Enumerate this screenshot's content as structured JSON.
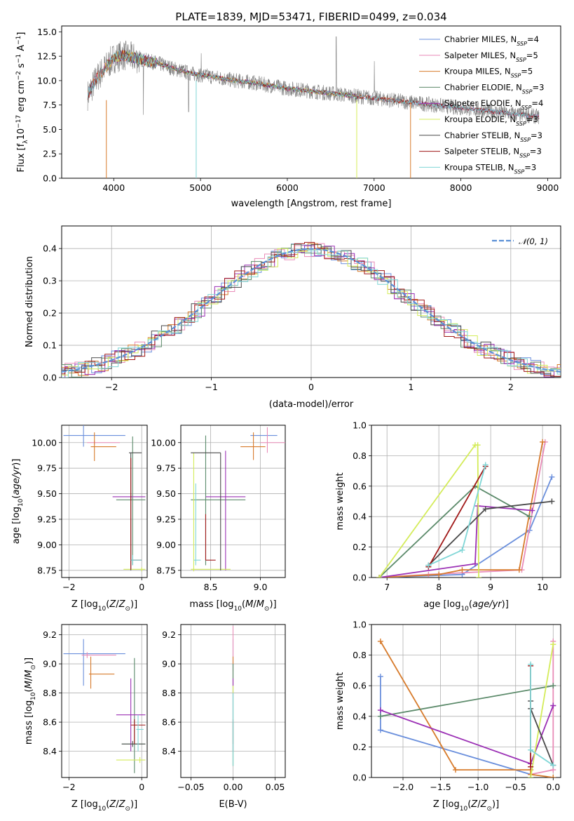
{
  "colors": {
    "chabrier_miles": "#6a8fdc",
    "salpeter_miles": "#e98cb8",
    "kroupa_miles": "#d77b2c",
    "chabrier_elodie": "#5b8a6a",
    "salpeter_elodie": "#9b30b5",
    "kroupa_elodie": "#d4ec5a",
    "chabrier_stelib": "#4a4a4a",
    "salpeter_stelib": "#a01818",
    "kroupa_stelib": "#7fd6d6",
    "data_gray": "#808080",
    "normal": "#5a8fd6"
  },
  "chart_data": [
    {
      "id": "spectrum",
      "type": "line",
      "title": "PLATE=1839, MJD=53471, FIBERID=0499, z=0.034",
      "xlabel": "wavelength [Angstrom, rest frame]",
      "ylabel": "Flux [f_λ10^-17 erg cm^-2 s^-1 A^-1]",
      "xlim": [
        3400,
        9150
      ],
      "ylim": [
        0,
        15.6
      ],
      "xticks": [
        "4000",
        "5000",
        "6000",
        "7000",
        "8000",
        "9000"
      ],
      "yticks": [
        "0.0",
        "2.5",
        "5.0",
        "7.5",
        "10.0",
        "12.5",
        "15.0"
      ],
      "legend_position": "top-right",
      "legend": [
        {
          "model": "Chabrier MILES",
          "nssp": "4",
          "color": "chabrier_miles"
        },
        {
          "model": "Salpeter MILES",
          "nssp": "5",
          "color": "salpeter_miles"
        },
        {
          "model": "Kroupa MILES",
          "nssp": "5",
          "color": "kroupa_miles"
        },
        {
          "model": "Chabrier ELODIE",
          "nssp": "3",
          "color": "chabrier_elodie"
        },
        {
          "model": "Salpeter ELODIE",
          "nssp": "4",
          "color": "salpeter_elodie"
        },
        {
          "model": "Kroupa ELODIE",
          "nssp": "3",
          "color": "kroupa_elodie"
        },
        {
          "model": "Chabrier STELIB",
          "nssp": "3",
          "color": "chabrier_stelib"
        },
        {
          "model": "Salpeter STELIB",
          "nssp": "3",
          "color": "salpeter_stelib"
        },
        {
          "model": "Kroupa STELIB",
          "nssp": "3",
          "color": "kroupa_stelib"
        }
      ],
      "continuum": {
        "x": [
          3700,
          3800,
          3900,
          4000,
          4100,
          4200,
          4300,
          4400,
          4500,
          4700,
          4900,
          5000,
          5200,
          5400,
          5600,
          5800,
          6000,
          6200,
          6400,
          6600,
          6800,
          7000,
          7200,
          7400
        ],
        "y": [
          8.5,
          10.2,
          11.3,
          12.3,
          12.6,
          12.4,
          12.2,
          12.0,
          11.8,
          11.2,
          10.7,
          10.6,
          10.3,
          10.0,
          9.8,
          9.5,
          9.2,
          9.0,
          8.8,
          8.6,
          8.4,
          8.2,
          8.0,
          7.8
        ]
      },
      "model_ranges": {
        "chabrier_miles": [
          3700,
          8900
        ],
        "salpeter_miles": [
          3700,
          8900
        ],
        "kroupa_miles": [
          3700,
          7420
        ],
        "chabrier_elodie": [
          4000,
          6800
        ],
        "salpeter_elodie": [
          4000,
          6800
        ],
        "kroupa_elodie": [
          3900,
          6800
        ],
        "chabrier_stelib": [
          3700,
          8900
        ],
        "salpeter_stelib": [
          3700,
          8900
        ],
        "kroupa_stelib": [
          3700,
          8900
        ]
      }
    },
    {
      "id": "residuals",
      "type": "step",
      "xlabel": "(data-model)/error",
      "ylabel": "Normed distribution",
      "xlim": [
        -2.5,
        2.5
      ],
      "ylim": [
        0,
        0.47
      ],
      "xticks": [
        -2,
        -1,
        0,
        1,
        2
      ],
      "xtick_labels": [
        "−2",
        "−1",
        "0",
        "1",
        "2"
      ],
      "yticks": [
        "0.0",
        "0.1",
        "0.2",
        "0.3",
        "0.4"
      ],
      "legend_position": "top-right",
      "normal_label": "𝒩(0, 1)"
    },
    {
      "id": "age_vs_Z",
      "type": "errorbar",
      "xlabel": "Z [log10(Z/Z⊙)]",
      "ylabel": "age  [log10(age/yr)]",
      "xlim": [
        -2.2,
        0.15
      ],
      "ylim": [
        8.68,
        10.17
      ],
      "xticks": [
        -2,
        0
      ],
      "xtick_labels": [
        "−2",
        "0"
      ],
      "yticks": [
        8.75,
        9.0,
        9.25,
        9.5,
        9.75,
        10.0
      ],
      "ytick_labels": [
        "8.75",
        "9.00",
        "9.25",
        "9.50",
        "9.75",
        "10.00"
      ],
      "points": [
        {
          "color": "chabrier_miles",
          "x": -1.6,
          "xl": -2.15,
          "xh": -0.45,
          "y": 10.07,
          "yl": 9.96,
          "yh": 10.18
        },
        {
          "color": "salpeter_miles",
          "x": -1.3,
          "xl": -1.5,
          "xh": -0.6,
          "y": 10.0,
          "yl": 9.98,
          "yh": 10.02
        },
        {
          "color": "kroupa_miles",
          "x": -1.3,
          "xl": -1.4,
          "xh": -0.7,
          "y": 9.96,
          "yl": 9.82,
          "yh": 10.1
        },
        {
          "color": "chabrier_elodie",
          "x": -0.25,
          "xl": -0.7,
          "xh": 0.1,
          "y": 9.44,
          "yl": 8.8,
          "yh": 10.06
        },
        {
          "color": "salpeter_elodie",
          "x": -0.3,
          "xl": -0.8,
          "xh": 0.1,
          "y": 9.47,
          "yl": 9.44,
          "yh": 9.5
        },
        {
          "color": "kroupa_elodie",
          "x": 0.0,
          "xl": -0.5,
          "xh": 0.1,
          "y": 8.76,
          "yl": 8.74,
          "yh": 8.78
        },
        {
          "color": "chabrier_stelib",
          "x": -0.3,
          "xl": -0.35,
          "xh": 0.0,
          "y": 9.9,
          "yl": 8.75,
          "yh": 9.9
        },
        {
          "color": "salpeter_stelib",
          "x": -0.3,
          "xl": -0.3,
          "xh": 0.0,
          "y": 8.85,
          "yl": 8.76,
          "yh": 9.85
        },
        {
          "color": "kroupa_stelib",
          "x": -0.25,
          "xl": -0.3,
          "xh": 0.0,
          "y": 8.85,
          "yl": 8.8,
          "yh": 8.9
        }
      ]
    },
    {
      "id": "age_vs_mass",
      "type": "errorbar",
      "xlabel": "mass [log10(M/M⊙)]",
      "ylabel": "",
      "xlim": [
        8.2,
        9.25
      ],
      "ylim": [
        8.68,
        10.17
      ],
      "xticks": [
        8.5,
        9.0
      ],
      "xtick_labels": [
        "8.5",
        "9.0"
      ],
      "yticks": [
        8.75,
        9.0,
        9.25,
        9.5,
        9.75,
        10.0
      ],
      "ytick_labels": [
        "8.75",
        "9.00",
        "9.25",
        "9.50",
        "9.75",
        "10.00"
      ],
      "points": [
        {
          "color": "chabrier_miles",
          "x": 9.07,
          "xl": 8.9,
          "xh": 9.17,
          "y": 10.07,
          "yl": 10.07,
          "yh": 10.07
        },
        {
          "color": "salpeter_miles",
          "x": 9.07,
          "xl": 9.0,
          "xh": 9.25,
          "y": 10.0,
          "yl": 9.9,
          "yh": 10.15
        },
        {
          "color": "kroupa_miles",
          "x": 8.93,
          "xl": 8.8,
          "xh": 9.05,
          "y": 9.96,
          "yl": 9.83,
          "yh": 10.1
        },
        {
          "color": "chabrier_elodie",
          "x": 8.45,
          "xl": 8.3,
          "xh": 8.85,
          "y": 9.44,
          "yl": 8.8,
          "yh": 10.07
        },
        {
          "color": "salpeter_elodie",
          "x": 8.65,
          "xl": 8.45,
          "xh": 8.85,
          "y": 9.47,
          "yl": 8.75,
          "yh": 9.92
        },
        {
          "color": "kroupa_elodie",
          "x": 8.33,
          "xl": 8.3,
          "xh": 8.7,
          "y": 8.76,
          "yl": 8.74,
          "yh": 9.9
        },
        {
          "color": "chabrier_stelib",
          "x": 8.6,
          "xl": 8.3,
          "xh": 8.6,
          "y": 9.9,
          "yl": 8.75,
          "yh": 9.9
        },
        {
          "color": "salpeter_stelib",
          "x": 8.45,
          "xl": 8.45,
          "xh": 8.55,
          "y": 8.85,
          "yl": 8.85,
          "yh": 9.3
        },
        {
          "color": "kroupa_stelib",
          "x": 8.35,
          "xl": 8.33,
          "xh": 8.4,
          "y": 8.85,
          "yl": 8.8,
          "yh": 9.6
        }
      ]
    },
    {
      "id": "weight_vs_age",
      "type": "line",
      "xlabel": "age  [log10(age/yr)]",
      "ylabel": "mass weight",
      "xlim": [
        6.7,
        10.35
      ],
      "ylim": [
        0,
        1.0
      ],
      "xticks": [
        7,
        8,
        9,
        10
      ],
      "xtick_labels": [
        "7",
        "8",
        "9",
        "10"
      ],
      "yticks": [
        0.0,
        0.2,
        0.4,
        0.6,
        0.8,
        1.0
      ],
      "ytick_labels": [
        "0.0",
        "0.2",
        "0.4",
        "0.6",
        "0.8",
        "1.0"
      ],
      "series": [
        {
          "color": "chabrier_miles",
          "x": [
            6.85,
            8.45,
            9.75,
            10.18
          ],
          "y": [
            0.0,
            0.02,
            0.31,
            0.66
          ]
        },
        {
          "color": "salpeter_miles",
          "x": [
            6.85,
            7.8,
            9.6,
            10.05
          ],
          "y": [
            0.0,
            0.02,
            0.05,
            0.89
          ]
        },
        {
          "color": "kroupa_miles",
          "x": [
            6.85,
            8.0,
            8.45,
            9.55,
            10.0
          ],
          "y": [
            0.0,
            0.02,
            0.05,
            0.05,
            0.89
          ]
        },
        {
          "color": "chabrier_elodie",
          "x": [
            6.85,
            8.7,
            9.75
          ],
          "y": [
            0.0,
            0.6,
            0.4
          ]
        },
        {
          "color": "salpeter_elodie",
          "x": [
            6.85,
            8.7,
            8.75,
            9.8
          ],
          "y": [
            0.0,
            0.09,
            0.47,
            0.44
          ]
        },
        {
          "color": "kroupa_elodie",
          "x": [
            6.85,
            8.7,
            8.75,
            8.77
          ],
          "y": [
            0.0,
            0.87,
            0.87,
            0.0
          ]
        },
        {
          "color": "chabrier_stelib",
          "x": [
            7.8,
            8.9,
            10.18
          ],
          "y": [
            0.08,
            0.45,
            0.5
          ]
        },
        {
          "color": "salpeter_stelib",
          "x": [
            7.8,
            8.9
          ],
          "y": [
            0.07,
            0.73
          ]
        },
        {
          "color": "kroupa_stelib",
          "x": [
            7.8,
            8.45,
            8.9
          ],
          "y": [
            0.08,
            0.18,
            0.74
          ]
        }
      ]
    },
    {
      "id": "mass_vs_Z",
      "type": "errorbar",
      "xlabel": "Z [log10(Z/Z⊙)]",
      "ylabel": "mass [log10(M/M⊙)]",
      "xlim": [
        -2.2,
        0.15
      ],
      "ylim": [
        8.22,
        9.27
      ],
      "xticks": [
        -2,
        0
      ],
      "xtick_labels": [
        "−2",
        "0"
      ],
      "yticks": [
        8.4,
        8.6,
        8.8,
        9.0,
        9.2
      ],
      "ytick_labels": [
        "8.4",
        "8.6",
        "8.8",
        "9.0",
        "9.2"
      ],
      "points": [
        {
          "color": "chabrier_miles",
          "x": -1.6,
          "xl": -2.15,
          "xh": -0.45,
          "y": 9.07,
          "yl": 8.85,
          "yh": 9.17
        },
        {
          "color": "salpeter_miles",
          "x": -1.5,
          "xl": -1.65,
          "xh": -0.7,
          "y": 9.06,
          "yl": 9.04,
          "yh": 9.08
        },
        {
          "color": "kroupa_miles",
          "x": -1.4,
          "xl": -1.45,
          "xh": -0.75,
          "y": 8.93,
          "yl": 8.83,
          "yh": 9.05
        },
        {
          "color": "chabrier_elodie",
          "x": -0.2,
          "xl": -0.55,
          "xh": 0.1,
          "y": 8.45,
          "yl": 8.25,
          "yh": 9.04
        },
        {
          "color": "salpeter_elodie",
          "x": -0.3,
          "xl": -0.7,
          "xh": 0.1,
          "y": 8.65,
          "yl": 8.4,
          "yh": 8.9
        },
        {
          "color": "kroupa_elodie",
          "x": -0.05,
          "xl": -0.7,
          "xh": 0.1,
          "y": 8.34,
          "yl": 8.32,
          "yh": 8.36
        },
        {
          "color": "chabrier_stelib",
          "x": -0.25,
          "xl": -0.55,
          "xh": 0.1,
          "y": 8.45,
          "yl": 8.43,
          "yh": 8.47
        },
        {
          "color": "salpeter_stelib",
          "x": -0.2,
          "xl": -0.3,
          "xh": 0.1,
          "y": 8.58,
          "yl": 8.45,
          "yh": 8.62
        },
        {
          "color": "kroupa_stelib",
          "x": -0.1,
          "xl": -0.15,
          "xh": 0.05,
          "y": 8.55,
          "yl": 8.4,
          "yh": 8.65
        }
      ]
    },
    {
      "id": "mass_vs_ebv",
      "type": "errorbar",
      "xlabel": "E(B-V)",
      "ylabel": "",
      "xlim": [
        -0.062,
        0.062
      ],
      "ylim": [
        8.22,
        9.27
      ],
      "xticks": [
        -0.05,
        0.0,
        0.05
      ],
      "xtick_labels": [
        "−0.05",
        "0.00",
        "0.05"
      ],
      "yticks": [
        8.4,
        8.6,
        8.8,
        9.0,
        9.2
      ],
      "ytick_labels": [
        "8.4",
        "8.6",
        "8.8",
        "9.0",
        "9.2"
      ],
      "points": [
        {
          "color": "chabrier_miles",
          "x": 0.0,
          "xl": 0.0,
          "xh": 0.0,
          "y": 9.07,
          "yl": 8.9,
          "yh": 9.17
        },
        {
          "color": "salpeter_miles",
          "x": 0.0,
          "xl": 0.0,
          "xh": 0.0,
          "y": 9.06,
          "yl": 8.95,
          "yh": 9.26
        },
        {
          "color": "kroupa_miles",
          "x": 0.0,
          "xl": 0.0,
          "xh": 0.0,
          "y": 8.93,
          "yl": 8.85,
          "yh": 9.05
        },
        {
          "color": "chabrier_elodie",
          "x": 0.0,
          "xl": 0.0,
          "xh": 0.0,
          "y": 8.45,
          "yl": 8.3,
          "yh": 9.0
        },
        {
          "color": "salpeter_elodie",
          "x": 0.0,
          "xl": 0.0,
          "xh": 0.0,
          "y": 8.65,
          "yl": 8.4,
          "yh": 8.9
        },
        {
          "color": "kroupa_elodie",
          "x": 0.0,
          "xl": 0.0,
          "xh": 0.0,
          "y": 8.34,
          "yl": 8.3,
          "yh": 8.85
        },
        {
          "color": "chabrier_stelib",
          "x": 0.0,
          "xl": 0.0,
          "xh": 0.0,
          "y": 8.45,
          "yl": 8.3,
          "yh": 8.6
        },
        {
          "color": "salpeter_stelib",
          "x": 0.0,
          "xl": 0.0,
          "xh": 0.0,
          "y": 8.58,
          "yl": 8.45,
          "yh": 8.62
        },
        {
          "color": "kroupa_stelib",
          "x": 0.0,
          "xl": 0.0,
          "xh": 0.0,
          "y": 8.55,
          "yl": 8.3,
          "yh": 8.8
        }
      ]
    },
    {
      "id": "weight_vs_Z",
      "type": "line",
      "xlabel": "Z [log10(Z/Z⊙)]",
      "ylabel": "mass weight",
      "xlim": [
        -2.42,
        0.1
      ],
      "ylim": [
        0,
        1.0
      ],
      "xticks": [
        -2.0,
        -1.5,
        -1.0,
        -0.5,
        0.0
      ],
      "xtick_labels": [
        "−2.0",
        "−1.5",
        "−1.0",
        "−0.5",
        "0.0"
      ],
      "yticks": [
        0.0,
        0.2,
        0.4,
        0.6,
        0.8,
        1.0
      ],
      "ytick_labels": [
        "0.0",
        "0.2",
        "0.4",
        "0.6",
        "0.8",
        "1.0"
      ],
      "series": [
        {
          "color": "chabrier_miles",
          "x": [
            -2.3,
            -2.3,
            -0.3,
            -0.3
          ],
          "y": [
            0.66,
            0.31,
            0.02,
            0.0
          ]
        },
        {
          "color": "salpeter_miles",
          "x": [
            -0.3,
            0.0,
            0.0
          ],
          "y": [
            0.02,
            0.05,
            0.89
          ]
        },
        {
          "color": "kroupa_miles",
          "x": [
            -2.3,
            -1.3,
            -0.3,
            -0.3,
            0.0
          ],
          "y": [
            0.89,
            0.05,
            0.05,
            0.02,
            0.0
          ]
        },
        {
          "color": "chabrier_elodie",
          "x": [
            -2.3,
            0.0
          ],
          "y": [
            0.4,
            0.6
          ]
        },
        {
          "color": "salpeter_elodie",
          "x": [
            -2.3,
            -0.3,
            0.0,
            0.0
          ],
          "y": [
            0.44,
            0.09,
            0.47,
            0.47
          ]
        },
        {
          "color": "kroupa_elodie",
          "x": [
            -0.3,
            0.0,
            0.0
          ],
          "y": [
            0.0,
            0.87,
            0.87
          ]
        },
        {
          "color": "chabrier_stelib",
          "x": [
            -0.3,
            -0.3,
            0.0
          ],
          "y": [
            0.5,
            0.45,
            0.08
          ]
        },
        {
          "color": "salpeter_stelib",
          "x": [
            -0.3,
            -0.3
          ],
          "y": [
            0.73,
            0.07
          ]
        },
        {
          "color": "kroupa_stelib",
          "x": [
            -0.3,
            -0.3,
            0.0
          ],
          "y": [
            0.74,
            0.18,
            0.08
          ]
        }
      ]
    }
  ]
}
